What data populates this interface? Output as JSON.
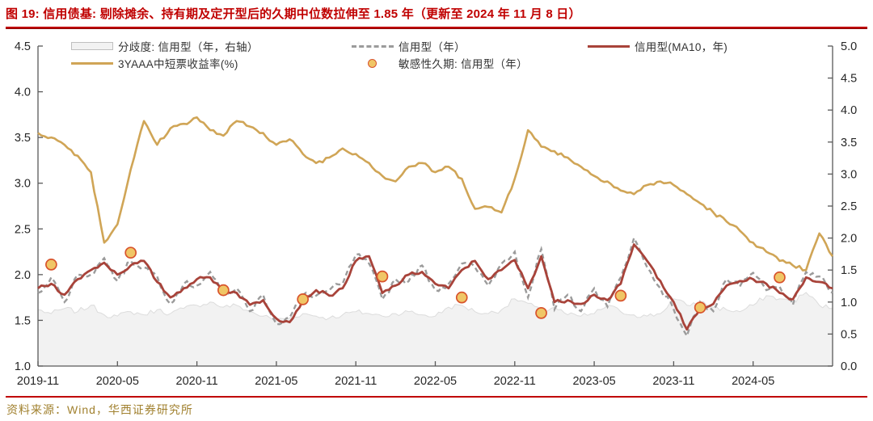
{
  "title": "图 19:  信用债基:  剔除摊余、持有期及定开型后的久期中位数拉伸至 1.85 年（更新至 2024 年 11 月 8 日）",
  "source": "资料来源：Wind，华西证券研究所",
  "colors": {
    "accent_red": "#C00000",
    "line_red": "#A8433A",
    "line_gold": "#D0A556",
    "line_dashed_gray": "#9B9B9B",
    "area_fill": "#F2F2F2",
    "area_stroke": "#DCDCDC",
    "dot_fill": "#F0C666",
    "dot_stroke": "#D8532C",
    "axis": "#595959",
    "tick_text": "#262626",
    "source_text": "#A1812F"
  },
  "chart_data": {
    "type": "line",
    "title": "信用债基久期中位数与3YAAA收益率",
    "legend_position": "top",
    "grid": false,
    "left_axis": {
      "min": 1.0,
      "max": 4.5,
      "tick_labels": [
        "4.5",
        "4.0",
        "3.5",
        "3.0",
        "2.5",
        "2.0",
        "1.5",
        "1.0"
      ]
    },
    "right_axis": {
      "min": 0.0,
      "max": 5.0,
      "tick_labels": [
        "5.0",
        "4.5",
        "4.0",
        "3.5",
        "3.0",
        "2.5",
        "2.0",
        "1.5",
        "1.0",
        "0.5",
        "0.0"
      ]
    },
    "x_tick_labels": [
      "2019-11",
      "2020-05",
      "2020-11",
      "2021-05",
      "2021-11",
      "2022-05",
      "2022-11",
      "2023-05",
      "2023-11",
      "2024-05"
    ],
    "x_tick_month_index": [
      0,
      6,
      12,
      18,
      24,
      30,
      36,
      42,
      48,
      54
    ],
    "months": [
      "2019-11",
      "2019-12",
      "2020-01",
      "2020-02",
      "2020-03",
      "2020-04",
      "2020-05",
      "2020-06",
      "2020-07",
      "2020-08",
      "2020-09",
      "2020-10",
      "2020-11",
      "2020-12",
      "2021-01",
      "2021-02",
      "2021-03",
      "2021-04",
      "2021-05",
      "2021-06",
      "2021-07",
      "2021-08",
      "2021-09",
      "2021-10",
      "2021-11",
      "2021-12",
      "2022-01",
      "2022-02",
      "2022-03",
      "2022-04",
      "2022-05",
      "2022-06",
      "2022-07",
      "2022-08",
      "2022-09",
      "2022-10",
      "2022-11",
      "2022-12",
      "2023-01",
      "2023-02",
      "2023-03",
      "2023-04",
      "2023-05",
      "2023-06",
      "2023-07",
      "2023-08",
      "2023-09",
      "2023-10",
      "2023-11",
      "2023-12",
      "2024-01",
      "2024-02",
      "2024-03",
      "2024-04",
      "2024-05",
      "2024-06",
      "2024-07",
      "2024-08",
      "2024-09",
      "2024-10",
      "2024-11"
    ],
    "legend": {
      "row1": [
        {
          "label": "分歧度: 信用型（年，右轴）",
          "swatch": "area"
        },
        {
          "label": "信用型（年）",
          "swatch": "dashed"
        },
        {
          "label": "信用型(MA10，年)",
          "swatch": "line-red"
        }
      ],
      "row2": [
        {
          "label": "3YAAA中短票收益率(%)",
          "swatch": "line-gold"
        },
        {
          "label": "敏感性久期: 信用型（年）",
          "swatch": "dot"
        }
      ]
    },
    "series": [
      {
        "name": "分歧度: 信用型（年，右轴）",
        "kind": "area",
        "axis": "right",
        "values": [
          0.88,
          0.82,
          0.9,
          0.85,
          0.95,
          0.8,
          0.78,
          0.85,
          0.8,
          0.88,
          0.82,
          0.9,
          0.95,
          1.0,
          0.92,
          0.95,
          0.85,
          0.78,
          0.72,
          0.75,
          0.82,
          0.78,
          0.75,
          0.8,
          0.85,
          0.82,
          0.78,
          0.82,
          0.85,
          0.8,
          0.78,
          0.92,
          0.95,
          0.85,
          0.82,
          0.88,
          1.05,
          0.98,
          0.85,
          0.92,
          0.8,
          0.78,
          0.82,
          0.95,
          0.85,
          0.8,
          0.78,
          0.82,
          1.05,
          0.95,
          1.0,
          0.92,
          0.88,
          0.85,
          0.95,
          1.1,
          1.05,
          1.0,
          1.15,
          0.95,
          0.9
        ]
      },
      {
        "name": "信用型（年）",
        "kind": "dashed",
        "axis": "left",
        "values": [
          1.8,
          1.97,
          1.7,
          2.0,
          2.0,
          2.18,
          1.93,
          2.15,
          2.08,
          1.98,
          1.68,
          1.9,
          1.88,
          2.03,
          1.77,
          1.85,
          1.6,
          1.78,
          1.46,
          1.53,
          1.78,
          1.77,
          1.83,
          1.9,
          2.22,
          2.12,
          1.73,
          1.95,
          1.93,
          2.1,
          1.83,
          1.9,
          2.12,
          2.08,
          1.88,
          2.12,
          2.25,
          1.75,
          2.28,
          1.62,
          1.78,
          1.6,
          1.85,
          1.65,
          1.97,
          2.4,
          2.08,
          1.85,
          1.62,
          1.33,
          1.7,
          1.6,
          1.95,
          1.87,
          2.02,
          1.83,
          1.87,
          1.67,
          2.03,
          1.98,
          1.8
        ]
      },
      {
        "name": "信用型(MA10，年)",
        "kind": "line",
        "axis": "left",
        "values": [
          1.85,
          1.9,
          1.78,
          1.95,
          2.05,
          2.13,
          2.0,
          2.1,
          2.15,
          1.92,
          1.75,
          1.85,
          1.95,
          1.97,
          1.83,
          1.8,
          1.67,
          1.72,
          1.52,
          1.48,
          1.72,
          1.83,
          1.77,
          1.85,
          2.15,
          2.2,
          1.8,
          1.88,
          2.0,
          2.03,
          1.9,
          1.85,
          2.05,
          2.15,
          1.95,
          2.05,
          2.16,
          1.85,
          2.2,
          1.7,
          1.72,
          1.68,
          1.78,
          1.72,
          1.9,
          2.33,
          2.15,
          1.93,
          1.7,
          1.4,
          1.63,
          1.68,
          1.88,
          1.93,
          1.95,
          1.9,
          1.8,
          1.73,
          1.97,
          1.92,
          1.85
        ]
      },
      {
        "name": "3YAAA中短票收益率(%)",
        "kind": "line",
        "axis": "left",
        "values": [
          3.55,
          3.5,
          3.42,
          3.3,
          3.12,
          2.35,
          2.55,
          3.15,
          3.68,
          3.42,
          3.6,
          3.65,
          3.72,
          3.58,
          3.52,
          3.68,
          3.62,
          3.55,
          3.42,
          3.48,
          3.32,
          3.22,
          3.28,
          3.38,
          3.32,
          3.22,
          3.08,
          3.02,
          3.18,
          3.22,
          3.12,
          3.18,
          3.05,
          2.72,
          2.74,
          2.68,
          3.05,
          3.58,
          3.4,
          3.35,
          3.28,
          3.18,
          3.08,
          3.02,
          2.92,
          2.88,
          2.98,
          3.02,
          2.98,
          2.88,
          2.78,
          2.68,
          2.58,
          2.48,
          2.35,
          2.25,
          2.15,
          2.1,
          2.05,
          2.45,
          2.2
        ]
      },
      {
        "name": "敏感性久期: 信用型（年）",
        "kind": "scatter",
        "axis": "left",
        "month_index": [
          1,
          7,
          14,
          20,
          26,
          32,
          38,
          44,
          50,
          56
        ],
        "values": [
          2.11,
          2.24,
          1.83,
          1.73,
          1.98,
          1.75,
          1.58,
          1.77,
          1.64,
          1.97
        ]
      }
    ]
  }
}
